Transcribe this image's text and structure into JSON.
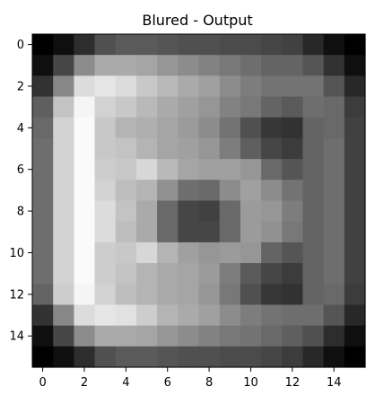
{
  "chart_data": {
    "type": "heatmap",
    "title": "Blured - Output",
    "xlabel": "",
    "ylabel": "",
    "colormap": "gray",
    "vmin": 0,
    "vmax": 255,
    "rows": 16,
    "cols": 16,
    "x_ticks": [
      0,
      2,
      4,
      6,
      8,
      10,
      12,
      14
    ],
    "y_ticks": [
      0,
      2,
      4,
      6,
      8,
      10,
      12,
      14
    ],
    "values": [
      [
        0,
        15,
        45,
        80,
        90,
        90,
        85,
        80,
        80,
        75,
        75,
        70,
        65,
        40,
        15,
        0
      ],
      [
        15,
        70,
        140,
        170,
        170,
        165,
        150,
        140,
        130,
        120,
        110,
        100,
        100,
        85,
        50,
        15
      ],
      [
        50,
        135,
        220,
        230,
        220,
        200,
        185,
        170,
        160,
        140,
        125,
        115,
        115,
        115,
        85,
        40
      ],
      [
        95,
        195,
        245,
        210,
        200,
        185,
        170,
        160,
        150,
        130,
        120,
        100,
        90,
        110,
        105,
        60
      ],
      [
        105,
        210,
        250,
        200,
        180,
        175,
        165,
        155,
        140,
        115,
        80,
        55,
        50,
        100,
        105,
        65
      ],
      [
        110,
        210,
        250,
        200,
        195,
        180,
        165,
        160,
        150,
        125,
        95,
        70,
        60,
        100,
        110,
        65
      ],
      [
        110,
        210,
        250,
        205,
        200,
        215,
        185,
        165,
        160,
        160,
        150,
        105,
        85,
        100,
        110,
        65
      ],
      [
        110,
        210,
        250,
        210,
        190,
        180,
        145,
        110,
        105,
        140,
        160,
        140,
        115,
        100,
        110,
        65
      ],
      [
        110,
        210,
        250,
        220,
        195,
        170,
        105,
        70,
        65,
        105,
        155,
        150,
        125,
        100,
        110,
        65
      ],
      [
        110,
        210,
        250,
        220,
        190,
        170,
        105,
        70,
        70,
        105,
        155,
        145,
        120,
        100,
        110,
        65
      ],
      [
        110,
        210,
        250,
        205,
        200,
        215,
        180,
        160,
        150,
        155,
        150,
        100,
        85,
        100,
        110,
        65
      ],
      [
        110,
        210,
        250,
        205,
        195,
        180,
        170,
        165,
        155,
        125,
        90,
        70,
        60,
        100,
        110,
        65
      ],
      [
        100,
        205,
        245,
        210,
        190,
        180,
        170,
        165,
        150,
        120,
        80,
        55,
        50,
        100,
        105,
        60
      ],
      [
        50,
        135,
        220,
        230,
        225,
        205,
        180,
        170,
        160,
        140,
        125,
        115,
        110,
        110,
        85,
        40
      ],
      [
        15,
        70,
        140,
        170,
        170,
        165,
        150,
        140,
        130,
        120,
        115,
        105,
        95,
        80,
        45,
        15
      ],
      [
        0,
        15,
        45,
        80,
        90,
        90,
        85,
        80,
        80,
        75,
        75,
        70,
        60,
        40,
        15,
        0
      ]
    ]
  }
}
